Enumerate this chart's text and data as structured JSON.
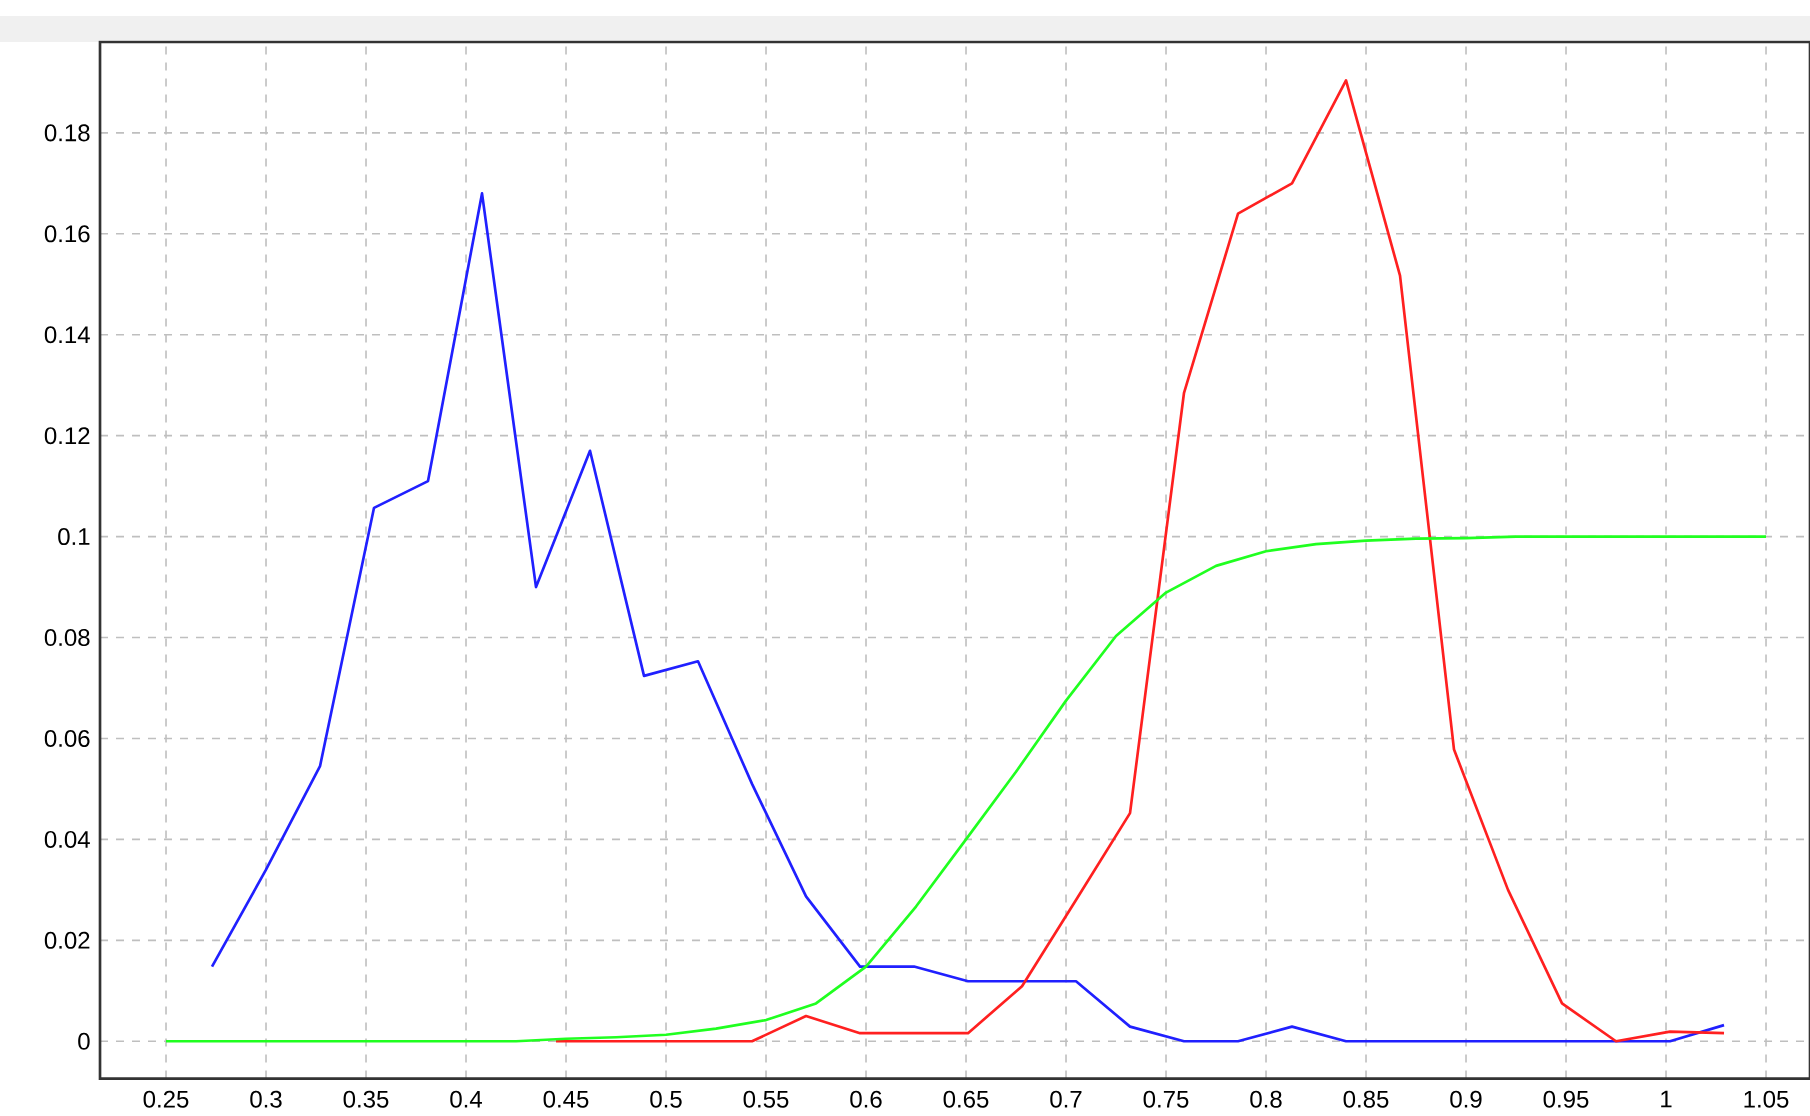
{
  "chart_data": {
    "type": "line",
    "xlim": [
      0.217,
      1.072
    ],
    "ylim": [
      -0.0074,
      0.198
    ],
    "xticks": [
      0.25,
      0.3,
      0.35,
      0.4,
      0.45,
      0.5,
      0.55,
      0.6,
      0.65,
      0.7,
      0.75,
      0.8,
      0.85,
      0.9,
      0.95,
      1,
      1.05
    ],
    "yticks": [
      0,
      0.02,
      0.04,
      0.06,
      0.08,
      0.1,
      0.12,
      0.14,
      0.16,
      0.18
    ],
    "grid": true,
    "series": [
      {
        "color": "#2020ff",
        "x": [
          0.273,
          0.3,
          0.327,
          0.354,
          0.381,
          0.408,
          0.435,
          0.462,
          0.489,
          0.516,
          0.543,
          0.57,
          0.597,
          0.624,
          0.651,
          0.678,
          0.705,
          0.732,
          0.759,
          0.786,
          0.813,
          0.84,
          0.867,
          0.894,
          0.921,
          0.948,
          0.975,
          1.002,
          1.029
        ],
        "values": [
          0.0148,
          0.034,
          0.0545,
          0.1057,
          0.111,
          0.168,
          0.09,
          0.117,
          0.0724,
          0.0753,
          0.051,
          0.0287,
          0.0148,
          0.0148,
          0.0119,
          0.0119,
          0.0119,
          0.0029,
          0,
          0,
          0.0029,
          0,
          0,
          0,
          0,
          0,
          0,
          0,
          0.0032
        ]
      },
      {
        "color": "#ff2020",
        "x": [
          0.445,
          0.462,
          0.489,
          0.516,
          0.543,
          0.57,
          0.597,
          0.624,
          0.651,
          0.678,
          0.705,
          0.732,
          0.759,
          0.786,
          0.813,
          0.84,
          0.867,
          0.894,
          0.921,
          0.948,
          0.975,
          1.002,
          1.029
        ],
        "values": [
          0,
          0,
          0,
          0,
          0,
          0.005,
          0.0016,
          0.0016,
          0.0016,
          0.0109,
          0.028,
          0.0452,
          0.1285,
          0.164,
          0.17,
          0.1904,
          0.1517,
          0.0578,
          0.03,
          0.0075,
          0,
          0.0019,
          0.0016
        ]
      },
      {
        "color": "#20ff20",
        "x": [
          0.25,
          0.275,
          0.3,
          0.325,
          0.35,
          0.375,
          0.4,
          0.425,
          0.45,
          0.475,
          0.5,
          0.525,
          0.55,
          0.575,
          0.6,
          0.625,
          0.65,
          0.675,
          0.7,
          0.725,
          0.75,
          0.775,
          0.8,
          0.825,
          0.85,
          0.875,
          0.9,
          0.925,
          0.95,
          0.975,
          1,
          1.025,
          1.05
        ],
        "values": [
          0,
          0,
          0,
          0,
          0,
          0,
          0,
          0,
          0.0005,
          0.0008,
          0.0013,
          0.0025,
          0.0042,
          0.0075,
          0.0148,
          0.0267,
          0.04,
          0.0534,
          0.0675,
          0.0803,
          0.0889,
          0.0942,
          0.0971,
          0.0985,
          0.0992,
          0.0996,
          0.0997,
          0.1,
          0.1,
          0.1,
          0.1,
          0.1,
          0.1
        ]
      }
    ]
  }
}
